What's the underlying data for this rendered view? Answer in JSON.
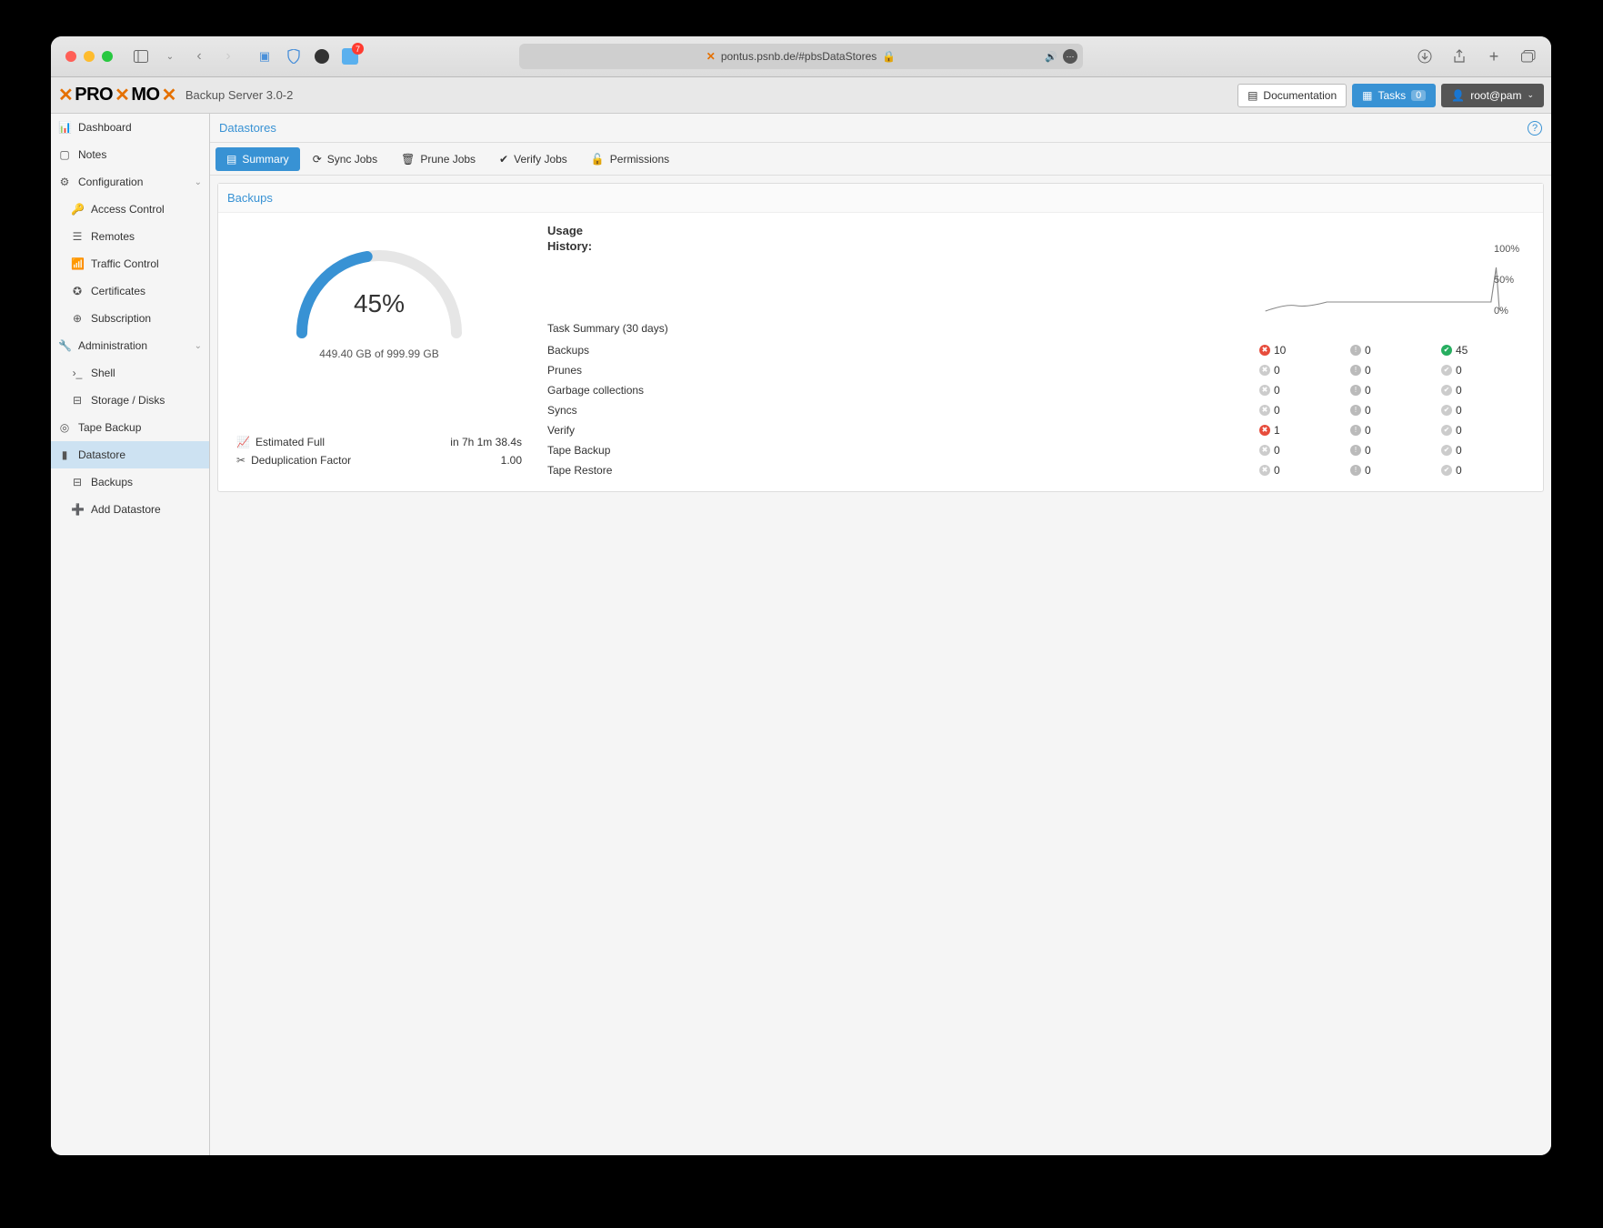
{
  "browser": {
    "url": "pontus.psnb.de/#pbsDataStores",
    "badge_count": "7"
  },
  "header": {
    "logo_text_1": "PRO",
    "logo_text_2": "MO",
    "subtitle": "Backup Server 3.0-2",
    "doc_label": "Documentation",
    "tasks_label": "Tasks",
    "tasks_count": "0",
    "user_label": "root@pam"
  },
  "sidebar": {
    "dashboard": "Dashboard",
    "notes": "Notes",
    "configuration": "Configuration",
    "access_control": "Access Control",
    "remotes": "Remotes",
    "traffic_control": "Traffic Control",
    "certificates": "Certificates",
    "subscription": "Subscription",
    "administration": "Administration",
    "shell": "Shell",
    "storage_disks": "Storage / Disks",
    "tape_backup": "Tape Backup",
    "datastore": "Datastore",
    "backups": "Backups",
    "add_datastore": "Add Datastore"
  },
  "crumb": {
    "title": "Datastores"
  },
  "tabs": {
    "summary": "Summary",
    "sync": "Sync Jobs",
    "prune": "Prune Jobs",
    "verify": "Verify Jobs",
    "permissions": "Permissions"
  },
  "panel": {
    "title": "Backups",
    "gauge_percent": 45,
    "gauge_label": "45%",
    "gauge_sub": "449.40 GB of 999.99 GB",
    "gauge_colors": {
      "fill": "#3892d4",
      "track": "#e6e6e6"
    },
    "est_full_label": "Estimated Full",
    "est_full_value": "in 7h 1m 38.4s",
    "dedup_label": "Deduplication Factor",
    "dedup_value": "1.00",
    "usage_history_label_1": "Usage",
    "usage_history_label_2": "History:",
    "usage_yaxis": [
      "100%",
      "50%",
      "0%"
    ],
    "task_summary_label": "Task Summary (30 days)",
    "task_rows": [
      {
        "name": "Backups",
        "err": "10",
        "warn": "0",
        "ok": "45",
        "err_state": "err",
        "ok_state": "ok"
      },
      {
        "name": "Prunes",
        "err": "0",
        "warn": "0",
        "ok": "0",
        "err_state": "neut",
        "ok_state": "neut"
      },
      {
        "name": "Garbage collections",
        "err": "0",
        "warn": "0",
        "ok": "0",
        "err_state": "neut",
        "ok_state": "neut"
      },
      {
        "name": "Syncs",
        "err": "0",
        "warn": "0",
        "ok": "0",
        "err_state": "neut",
        "ok_state": "neut"
      },
      {
        "name": "Verify",
        "err": "1",
        "warn": "0",
        "ok": "0",
        "err_state": "err",
        "ok_state": "neut"
      },
      {
        "name": "Tape Backup",
        "err": "0",
        "warn": "0",
        "ok": "0",
        "err_state": "neut",
        "ok_state": "neut"
      },
      {
        "name": "Tape Restore",
        "err": "0",
        "warn": "0",
        "ok": "0",
        "err_state": "neut",
        "ok_state": "neut"
      }
    ]
  }
}
